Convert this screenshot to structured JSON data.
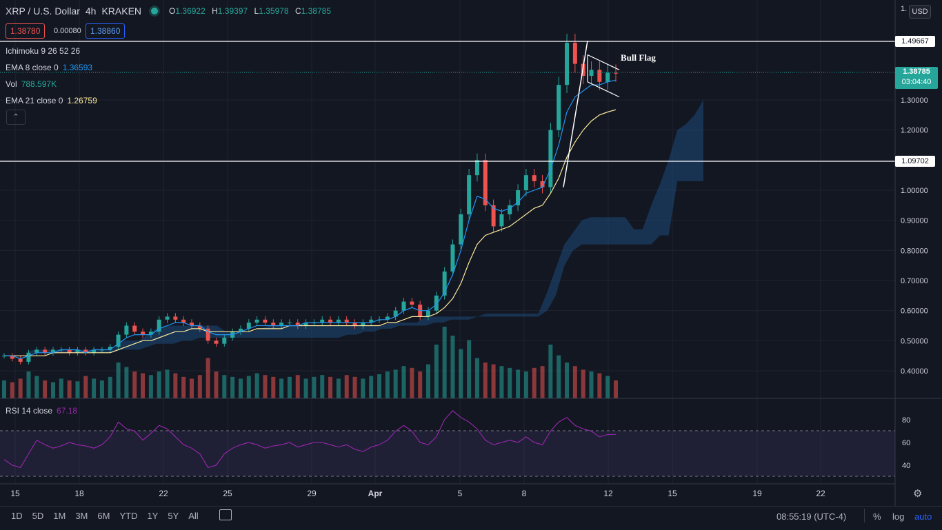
{
  "header": {
    "symbol": "XRP / U.S. Dollar",
    "interval": "4h",
    "exchange": "KRAKEN",
    "o_label": "O",
    "o_value": "1.36922",
    "h_label": "H",
    "h_value": "1.39397",
    "l_label": "L",
    "l_value": "1.35978",
    "c_label": "C",
    "c_value": "1.38785",
    "sell_price": "1.38780",
    "spread": "0.00080",
    "buy_price": "1.38860"
  },
  "indicators": {
    "ichimoku_label": "Ichimoku 9 26 52 26",
    "ema8_label": "EMA 8 close 0",
    "ema8_value": "1.36593",
    "vol_label": "Vol",
    "vol_value": "788.597K",
    "ema21_label": "EMA 21 close 0",
    "ema21_value": "1.26759",
    "rsi_label": "RSI 14 close",
    "rsi_value": "67.18",
    "collapse_icon": "chevron-up-icon"
  },
  "price_axis": {
    "currency": "USD",
    "top_tick": "1.",
    "ticks": [
      "1.30000",
      "1.20000",
      "1.10000",
      "1.00000",
      "0.90000",
      "0.80000",
      "0.70000",
      "0.60000",
      "0.50000",
      "0.40000"
    ],
    "hline_upper": "1.49667",
    "hline_lower": "1.09702",
    "last_price": "1.38785",
    "countdown": "03:04:40"
  },
  "rsi_axis": {
    "ticks": [
      "80",
      "60",
      "40"
    ]
  },
  "time_axis": {
    "ticks": [
      "15",
      "18",
      "22",
      "25",
      "29",
      "Apr",
      "5",
      "8",
      "12",
      "15",
      "19",
      "22"
    ]
  },
  "annotation": "Bull Flag",
  "toolbar": {
    "ranges": [
      "1D",
      "5D",
      "1M",
      "3M",
      "6M",
      "YTD",
      "1Y",
      "5Y",
      "All"
    ],
    "clock": "08:55:19 (UTC-4)",
    "percent": "%",
    "log": "log",
    "auto": "auto"
  },
  "colors": {
    "up": "#26a69a",
    "down": "#ef5350",
    "ema8": "#2196f3",
    "ema21": "#ffeb9c",
    "cloud": "#1e4b7a",
    "rsi": "#9c27b0"
  },
  "chart_data": {
    "type": "candlestick",
    "title": "XRP / U.S. Dollar",
    "ylim": [
      0.3,
      1.6
    ],
    "hlines": [
      1.49667,
      1.09702
    ],
    "last": 1.38785,
    "candles_close": [
      0.45,
      0.44,
      0.43,
      0.46,
      0.47,
      0.46,
      0.47,
      0.47,
      0.46,
      0.47,
      0.46,
      0.47,
      0.47,
      0.48,
      0.52,
      0.55,
      0.53,
      0.52,
      0.53,
      0.57,
      0.58,
      0.57,
      0.56,
      0.55,
      0.54,
      0.5,
      0.49,
      0.51,
      0.53,
      0.54,
      0.56,
      0.57,
      0.56,
      0.55,
      0.56,
      0.56,
      0.55,
      0.56,
      0.56,
      0.57,
      0.56,
      0.57,
      0.56,
      0.55,
      0.56,
      0.57,
      0.57,
      0.58,
      0.6,
      0.63,
      0.62,
      0.58,
      0.6,
      0.65,
      0.73,
      0.82,
      0.92,
      1.05,
      1.1,
      0.95,
      0.88,
      0.92,
      0.95,
      1.0,
      1.05,
      1.03,
      1.01,
      1.2,
      1.35,
      1.49,
      1.42,
      1.38,
      1.4,
      1.36,
      1.39,
      1.38785
    ],
    "ema8": [
      0.45,
      0.45,
      0.44,
      0.45,
      0.46,
      0.46,
      0.46,
      0.47,
      0.47,
      0.47,
      0.46,
      0.47,
      0.47,
      0.47,
      0.49,
      0.51,
      0.52,
      0.52,
      0.52,
      0.54,
      0.55,
      0.56,
      0.56,
      0.55,
      0.55,
      0.53,
      0.52,
      0.52,
      0.52,
      0.53,
      0.54,
      0.55,
      0.55,
      0.55,
      0.55,
      0.55,
      0.55,
      0.56,
      0.56,
      0.56,
      0.56,
      0.56,
      0.56,
      0.56,
      0.56,
      0.56,
      0.57,
      0.57,
      0.58,
      0.6,
      0.61,
      0.6,
      0.6,
      0.62,
      0.66,
      0.72,
      0.8,
      0.9,
      0.98,
      0.97,
      0.94,
      0.93,
      0.94,
      0.96,
      0.99,
      1.0,
      1.01,
      1.07,
      1.15,
      1.26,
      1.31,
      1.33,
      1.35,
      1.35,
      1.36,
      1.36593
    ],
    "ema21": [
      0.45,
      0.45,
      0.45,
      0.45,
      0.45,
      0.45,
      0.46,
      0.46,
      0.46,
      0.46,
      0.46,
      0.46,
      0.46,
      0.46,
      0.47,
      0.48,
      0.49,
      0.5,
      0.5,
      0.51,
      0.52,
      0.53,
      0.53,
      0.54,
      0.54,
      0.53,
      0.53,
      0.53,
      0.53,
      0.53,
      0.53,
      0.54,
      0.54,
      0.54,
      0.54,
      0.55,
      0.55,
      0.55,
      0.55,
      0.55,
      0.55,
      0.55,
      0.55,
      0.55,
      0.55,
      0.55,
      0.55,
      0.56,
      0.56,
      0.57,
      0.58,
      0.58,
      0.58,
      0.59,
      0.61,
      0.64,
      0.69,
      0.76,
      0.82,
      0.85,
      0.86,
      0.87,
      0.88,
      0.9,
      0.92,
      0.94,
      0.95,
      0.99,
      1.04,
      1.11,
      1.16,
      1.2,
      1.23,
      1.25,
      1.26,
      1.26759
    ],
    "volume": [
      20,
      18,
      22,
      30,
      25,
      20,
      18,
      22,
      20,
      19,
      25,
      22,
      20,
      24,
      40,
      35,
      30,
      28,
      26,
      30,
      32,
      28,
      24,
      22,
      26,
      45,
      30,
      26,
      24,
      22,
      25,
      28,
      26,
      24,
      22,
      24,
      26,
      22,
      24,
      26,
      24,
      22,
      26,
      24,
      22,
      25,
      27,
      30,
      32,
      36,
      34,
      30,
      38,
      60,
      80,
      70,
      55,
      65,
      45,
      40,
      38,
      36,
      34,
      32,
      30,
      34,
      36,
      60,
      48,
      40,
      36,
      32,
      30,
      28,
      25,
      20
    ],
    "rsi": [
      45,
      40,
      38,
      50,
      62,
      58,
      55,
      57,
      60,
      58,
      57,
      55,
      58,
      65,
      78,
      72,
      70,
      62,
      68,
      75,
      72,
      65,
      58,
      55,
      50,
      38,
      40,
      50,
      55,
      58,
      60,
      58,
      55,
      57,
      58,
      60,
      56,
      58,
      60,
      60,
      58,
      56,
      58,
      54,
      52,
      56,
      58,
      62,
      70,
      75,
      70,
      60,
      58,
      65,
      80,
      88,
      82,
      78,
      72,
      62,
      58,
      60,
      62,
      60,
      65,
      60,
      58,
      70,
      78,
      82,
      75,
      72,
      70,
      65,
      67,
      67.18
    ],
    "cloud_top": [
      0.46,
      0.46,
      0.46,
      0.46,
      0.47,
      0.47,
      0.47,
      0.47,
      0.47,
      0.47,
      0.47,
      0.47,
      0.47,
      0.47,
      0.5,
      0.5,
      0.5,
      0.52,
      0.54,
      0.55,
      0.55,
      0.55,
      0.55,
      0.55,
      0.55,
      0.55,
      0.53,
      0.53,
      0.53,
      0.53,
      0.54,
      0.55,
      0.55,
      0.55,
      0.55,
      0.55,
      0.55,
      0.55,
      0.55,
      0.55,
      0.55,
      0.55,
      0.55,
      0.55,
      0.55,
      0.56,
      0.56,
      0.56,
      0.56,
      0.58,
      0.58,
      0.58,
      0.58,
      0.58,
      0.58,
      0.58,
      0.59,
      0.59,
      0.59,
      0.59,
      0.59,
      0.59,
      0.59,
      0.66,
      0.74,
      0.82,
      0.86,
      0.9,
      0.91,
      0.91,
      0.91,
      0.91,
      0.91,
      0.87,
      0.87,
      0.95,
      1.02,
      1.1,
      1.2,
      1.22,
      1.25,
      1.3
    ],
    "cloud_bottom": [
      0.46,
      0.46,
      0.46,
      0.46,
      0.46,
      0.46,
      0.46,
      0.46,
      0.46,
      0.46,
      0.46,
      0.46,
      0.46,
      0.46,
      0.47,
      0.47,
      0.47,
      0.48,
      0.49,
      0.49,
      0.49,
      0.5,
      0.5,
      0.51,
      0.51,
      0.51,
      0.51,
      0.51,
      0.51,
      0.51,
      0.51,
      0.51,
      0.51,
      0.51,
      0.51,
      0.51,
      0.51,
      0.51,
      0.51,
      0.51,
      0.52,
      0.52,
      0.53,
      0.53,
      0.54,
      0.54,
      0.55,
      0.55,
      0.55,
      0.55,
      0.56,
      0.56,
      0.57,
      0.57,
      0.57,
      0.58,
      0.58,
      0.58,
      0.58,
      0.58,
      0.58,
      0.58,
      0.58,
      0.6,
      0.65,
      0.75,
      0.8,
      0.82,
      0.82,
      0.82,
      0.82,
      0.82,
      0.82,
      0.82,
      0.82,
      0.82,
      0.85,
      0.85,
      1.03,
      1.03,
      1.03,
      1.03
    ]
  }
}
